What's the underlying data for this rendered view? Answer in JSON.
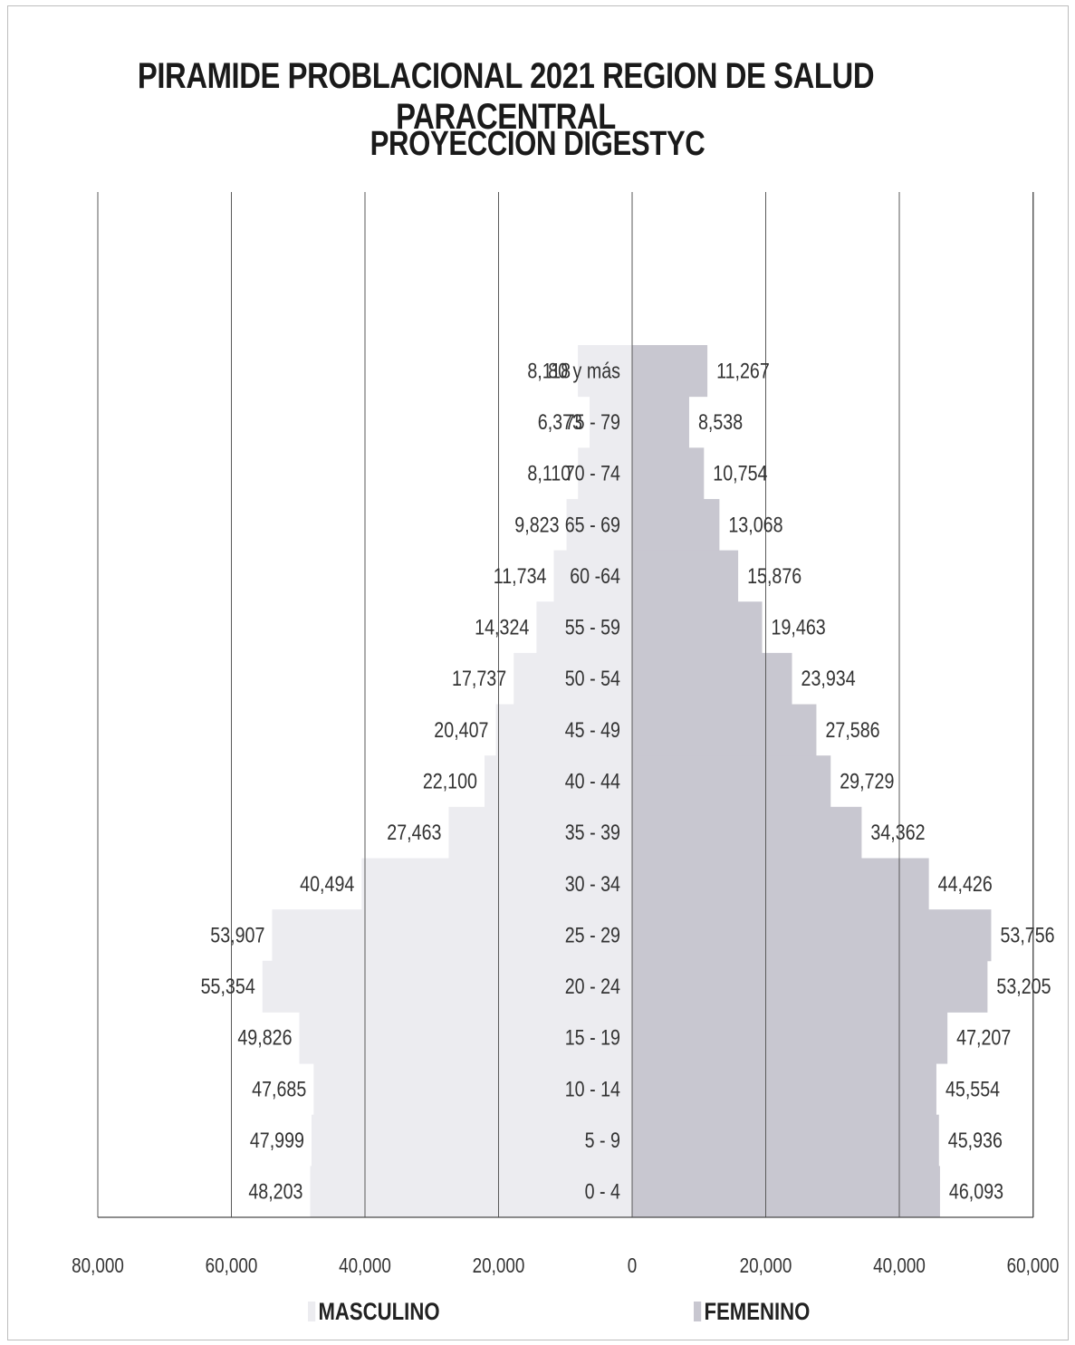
{
  "chart_data": {
    "type": "bar",
    "orientation": "horizontal-pyramid",
    "title": "PIRAMIDE PROBLACIONAL 2021 REGION DE SALUD PARACENTRAL",
    "subtitle": "PROYECCION DIGESTYC",
    "categories": [
      "80 y más",
      "75 - 79",
      "70 - 74",
      "65 - 69",
      "60 -64",
      "55 - 59",
      "50 - 54",
      "45 - 49",
      "40 - 44",
      "35 - 39",
      "30 - 34",
      "25 - 29",
      "20 - 24",
      "15 - 19",
      "10 - 14",
      "5 - 9",
      "0 - 4"
    ],
    "series": [
      {
        "name": "MASCULINO",
        "color": "#ececf0",
        "values": [
          8118,
          6373,
          8110,
          9823,
          11734,
          14324,
          17737,
          20407,
          22100,
          27463,
          40494,
          53907,
          55354,
          49826,
          47685,
          47999,
          48203
        ],
        "labels": [
          "8,118",
          "6,373",
          "8,110",
          "9,823",
          "11,734",
          "14,324",
          "17,737",
          "20,407",
          "22,100",
          "27,463",
          "40,494",
          "53,907",
          "55,354",
          "49,826",
          "47,685",
          "47,999",
          "48,203"
        ]
      },
      {
        "name": "FEMENINO",
        "color": "#c8c7d0",
        "values": [
          11267,
          8538,
          10754,
          13068,
          15876,
          19463,
          23934,
          27586,
          29729,
          34362,
          44426,
          53756,
          53205,
          47207,
          45554,
          45936,
          46093
        ],
        "labels": [
          "11,267",
          "8,538",
          "10,754",
          "13,068",
          "15,876",
          "19,463",
          "23,934",
          "27,586",
          "29,729",
          "34,362",
          "44,426",
          "53,756",
          "53,205",
          "47,207",
          "45,554",
          "45,936",
          "46,093"
        ]
      }
    ],
    "xlim": [
      -80000,
      60000
    ],
    "xticks": [
      -80000,
      -60000,
      -40000,
      -20000,
      0,
      20000,
      40000,
      60000
    ],
    "xtick_labels": [
      "80,000",
      "60,000",
      "40,000",
      "20,000",
      "0",
      "20,000",
      "40,000",
      "60,000"
    ],
    "grid": true,
    "legend_position": "bottom"
  }
}
